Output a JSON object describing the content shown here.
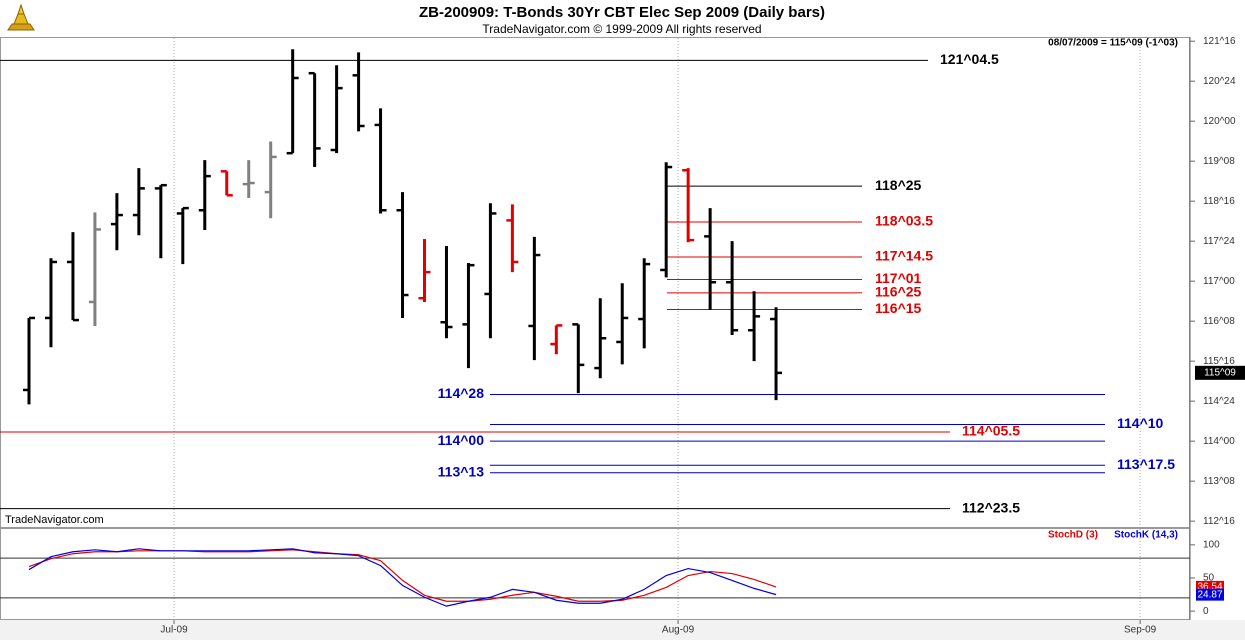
{
  "chart_data": [
    {
      "type": "ohlc",
      "title": "ZB-200909:  T-Bonds 30Yr CBT Elec Sep 2009  (Daily bars)",
      "subtitle": "TradeNavigator.com © 1999-2009 All rights reserved",
      "status": "08/07/2009 = 115^09 (-1^03)",
      "watermark": "TradeNavigator.com",
      "categories": [
        null,
        null,
        null,
        null,
        null,
        null,
        null,
        null,
        null,
        null,
        null,
        null,
        null,
        null,
        null,
        null,
        null,
        null,
        null,
        null,
        null,
        null,
        null,
        null,
        null,
        null,
        null,
        null,
        null,
        null,
        null,
        null,
        null,
        null,
        null
      ],
      "open": [
        114.96,
        116.31,
        117.36,
        116.61,
        118.07,
        118.24,
        118.74,
        118.27,
        118.33,
        119.06,
        118.82,
        118.67,
        119.4,
        120.9,
        119.46,
        120.86,
        119.93,
        118.33,
        116.68,
        116.23,
        116.19,
        116.76,
        118.14,
        116.16,
        115.82,
        116.19,
        115.37,
        115.86,
        116.29,
        117.21,
        119.08,
        117.84,
        116.98,
        116.08,
        116.29
      ],
      "high": [
        116.31,
        117.43,
        117.92,
        118.29,
        118.65,
        119.12,
        118.8,
        118.37,
        119.27,
        119.06,
        119.27,
        119.62,
        121.35,
        120.9,
        121.05,
        121.29,
        120.24,
        118.67,
        117.79,
        117.66,
        117.34,
        118.46,
        118.44,
        117.83,
        116.17,
        116.19,
        116.68,
        116.96,
        117.43,
        119.23,
        119.12,
        118.37,
        117.75,
        116.81,
        116.51
      ],
      "low": [
        114.69,
        115.76,
        116.27,
        116.16,
        117.58,
        117.86,
        117.43,
        117.32,
        117.96,
        118.61,
        118.56,
        118.18,
        119.4,
        119.14,
        119.4,
        119.81,
        118.27,
        116.31,
        116.61,
        115.93,
        115.37,
        115.93,
        117.17,
        115.52,
        115.63,
        114.9,
        115.18,
        115.44,
        115.74,
        117.07,
        117.73,
        116.46,
        115.99,
        115.5,
        114.77
      ],
      "close": [
        116.31,
        117.36,
        116.27,
        117.97,
        118.24,
        118.74,
        118.8,
        118.37,
        118.97,
        118.61,
        118.84,
        119.33,
        120.81,
        119.49,
        120.62,
        119.91,
        118.33,
        116.74,
        117.17,
        116.14,
        117.3,
        118.27,
        117.36,
        117.49,
        116.17,
        115.43,
        115.93,
        116.31,
        117.32,
        119.14,
        117.77,
        116.98,
        116.08,
        116.34,
        115.28
      ],
      "colors": [
        "#000000",
        "#000000",
        "#000000",
        "#808080",
        "#000000",
        "#000000",
        "#000000",
        "#000000",
        "#000000",
        "#e00000",
        "#808080",
        "#808080",
        "#000000",
        "#000000",
        "#000000",
        "#000000",
        "#000000",
        "#000000",
        "#e00000",
        "#000000",
        "#000000",
        "#000000",
        "#e00000",
        "#000000",
        "#e00000",
        "#000000",
        "#000000",
        "#000000",
        "#000000",
        "#000000",
        "#e00000",
        "#000000",
        "#000000",
        "#000000",
        "#000000"
      ],
      "xlim": [
        -1.32,
        52.84
      ],
      "xticks": [
        {
          "value": 6.6,
          "label": "Jul-09"
        },
        {
          "value": 29.54,
          "label": "Aug-09"
        },
        {
          "value": 50.57,
          "label": "Sep-09"
        }
      ],
      "ylim": [
        112.39,
        121.56
      ],
      "yticks": [
        {
          "value": 112.5,
          "label": "112^16"
        },
        {
          "value": 113.25,
          "label": "113^08"
        },
        {
          "value": 114,
          "label": "114^00"
        },
        {
          "value": 114.75,
          "label": "114^24"
        },
        {
          "value": 115.5,
          "label": "115^16"
        },
        {
          "value": 116.25,
          "label": "116^08"
        },
        {
          "value": 117,
          "label": "117^00"
        },
        {
          "value": 117.75,
          "label": "117^24"
        },
        {
          "value": 118.5,
          "label": "118^16"
        },
        {
          "value": 119.25,
          "label": "119^08"
        },
        {
          "value": 120,
          "label": "120^00"
        },
        {
          "value": 120.75,
          "label": "120^24"
        },
        {
          "value": 121.5,
          "label": "121^16"
        }
      ],
      "grid": true,
      "levels": [
        {
          "value": 121.140625,
          "label": "121^04.5",
          "color": "#000000"
        },
        {
          "value": 118.78125,
          "label": "118^25",
          "color": "#000000"
        },
        {
          "value": 118.109375,
          "label": "118^03.5",
          "color": "#e00000"
        },
        {
          "value": 117.453125,
          "label": "117^14.5",
          "color": "#e00000"
        },
        {
          "value": 117.03125,
          "label": "117^01",
          "color": "#e00000"
        },
        {
          "value": 116.78125,
          "label": "116^25",
          "color": "#e00000"
        },
        {
          "value": 116.46875,
          "label": "116^15",
          "color": "#e00000"
        },
        {
          "value": 114.875,
          "label": "114^28",
          "color": "#0000c0"
        },
        {
          "value": 114.3125,
          "label": "114^10",
          "color": "#0000c0"
        },
        {
          "value": 114.171875,
          "label": "114^05.5",
          "color": "#e00000"
        },
        {
          "value": 114.0,
          "label": "114^00",
          "color": "#0000c0"
        },
        {
          "value": 113.546875,
          "label": "113^17.5",
          "color": "#0000c0"
        },
        {
          "value": 113.40625,
          "label": "113^13",
          "color": "#0000c0"
        },
        {
          "value": 112.734375,
          "label": "112^23.5",
          "color": "#000000"
        }
      ],
      "last_price": {
        "value": 115.28125,
        "label": "115^09"
      }
    },
    {
      "type": "line",
      "series": [
        {
          "name": "StochD (3)",
          "color": "#e00000",
          "values": [
            67.2,
            79.1,
            86.6,
            89.6,
            89.6,
            91.0,
            91.0,
            91.0,
            89.6,
            89.6,
            89.6,
            91.0,
            92.5,
            89.6,
            86.6,
            85.1,
            76.1,
            46.3,
            23.9,
            14.9,
            14.9,
            17.9,
            23.9,
            28.4,
            22.4,
            14.9,
            14.9,
            16.4,
            23.9,
            35.8,
            53.7,
            59.7,
            56.7,
            47.8,
            36.54
          ]
        },
        {
          "name": "StochK (14,3)",
          "color": "#0000e0",
          "values": [
            62.7,
            82.1,
            89.6,
            92.5,
            89.6,
            94.0,
            91.0,
            91.0,
            91.0,
            91.0,
            91.0,
            92.5,
            94.0,
            88.1,
            86.6,
            83.6,
            68.7,
            38.8,
            20.9,
            7.5,
            14.9,
            20.9,
            32.8,
            28.4,
            16.4,
            11.9,
            11.9,
            17.9,
            32.8,
            53.7,
            64.2,
            58.2,
            46.3,
            34.3,
            24.87
          ]
        }
      ],
      "ylim": [
        -13.4,
        123.9
      ],
      "yticks": [
        0,
        50,
        100
      ],
      "hlines": [
        20,
        80
      ]
    }
  ]
}
